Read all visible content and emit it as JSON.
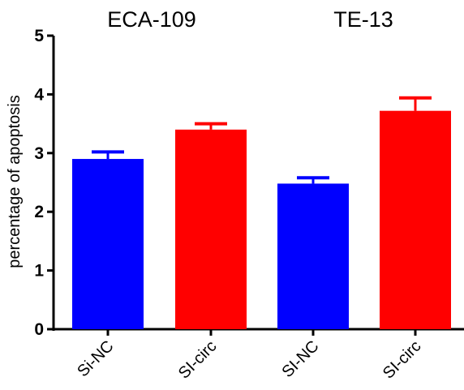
{
  "chart_data": {
    "type": "bar",
    "ylabel": "percentage of apoptosis",
    "ylim": [
      0,
      5
    ],
    "yticks": [
      0,
      1,
      2,
      3,
      4,
      5
    ],
    "grid": false,
    "groups": [
      {
        "title": "ECA-109",
        "bars": [
          {
            "category": "Si-NC",
            "value": 2.9,
            "error": 0.12,
            "color": "#0000FF"
          },
          {
            "category": "SI-circ",
            "value": 3.4,
            "error": 0.1,
            "color": "#FF0000"
          }
        ]
      },
      {
        "title": "TE-13",
        "bars": [
          {
            "category": "SI-NC",
            "value": 2.48,
            "error": 0.1,
            "color": "#0000FF"
          },
          {
            "category": "SI-circ",
            "value": 3.72,
            "error": 0.22,
            "color": "#FF0000"
          }
        ]
      }
    ]
  }
}
